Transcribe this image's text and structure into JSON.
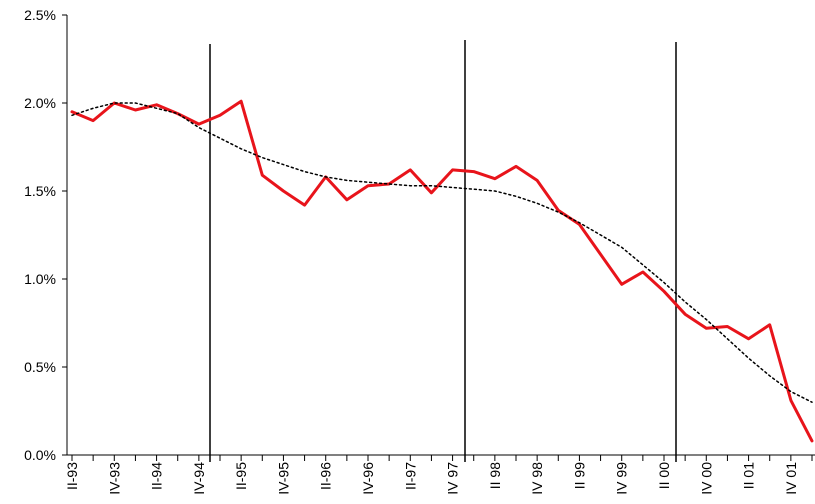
{
  "chart_data": {
    "type": "line",
    "categories": [
      "II-93",
      null,
      "IV-93",
      null,
      "II-94",
      null,
      "IV-94",
      null,
      "II-95",
      null,
      "IV-95",
      null,
      "II-96",
      null,
      "IV-96",
      null,
      "II-97",
      null,
      "IV 97",
      null,
      "II 98",
      null,
      "IV 98",
      null,
      "II 99",
      null,
      "IV 99",
      null,
      "II 00",
      null,
      "IV 00",
      null,
      "II 01",
      null,
      "IV 01",
      null
    ],
    "series": [
      {
        "color": "#e8141b",
        "style": "solid",
        "values": [
          1.95,
          1.9,
          2.0,
          1.96,
          1.99,
          1.94,
          1.88,
          1.93,
          2.01,
          1.59,
          1.5,
          1.42,
          1.58,
          1.45,
          1.53,
          1.54,
          1.62,
          1.49,
          1.62,
          1.61,
          1.57,
          1.64,
          1.56,
          1.39,
          1.31,
          1.14,
          0.97,
          1.04,
          0.93,
          0.8,
          0.72,
          0.73,
          0.66,
          0.74,
          0.31,
          0.08
        ]
      },
      {
        "color": "#000000",
        "style": "dotted",
        "values": [
          1.93,
          1.97,
          2.0,
          2.0,
          1.97,
          1.94,
          1.86,
          1.8,
          1.74,
          1.69,
          1.65,
          1.61,
          1.58,
          1.56,
          1.55,
          1.54,
          1.53,
          1.53,
          1.52,
          1.51,
          1.5,
          1.47,
          1.43,
          1.38,
          1.32,
          1.25,
          1.18,
          1.08,
          0.98,
          0.87,
          0.77,
          0.66,
          0.55,
          0.45,
          0.36,
          0.3
        ]
      }
    ],
    "ylim": [
      0,
      2.5
    ],
    "yticks": [
      {
        "value": 0,
        "label": "0.0%"
      },
      {
        "value": 0.5,
        "label": "0.5%"
      },
      {
        "value": 1,
        "label": "1.0%"
      },
      {
        "value": 1.5,
        "label": "1.5%"
      },
      {
        "value": 2,
        "label": "2.0%"
      },
      {
        "value": 2.5,
        "label": "2.5%"
      }
    ]
  }
}
